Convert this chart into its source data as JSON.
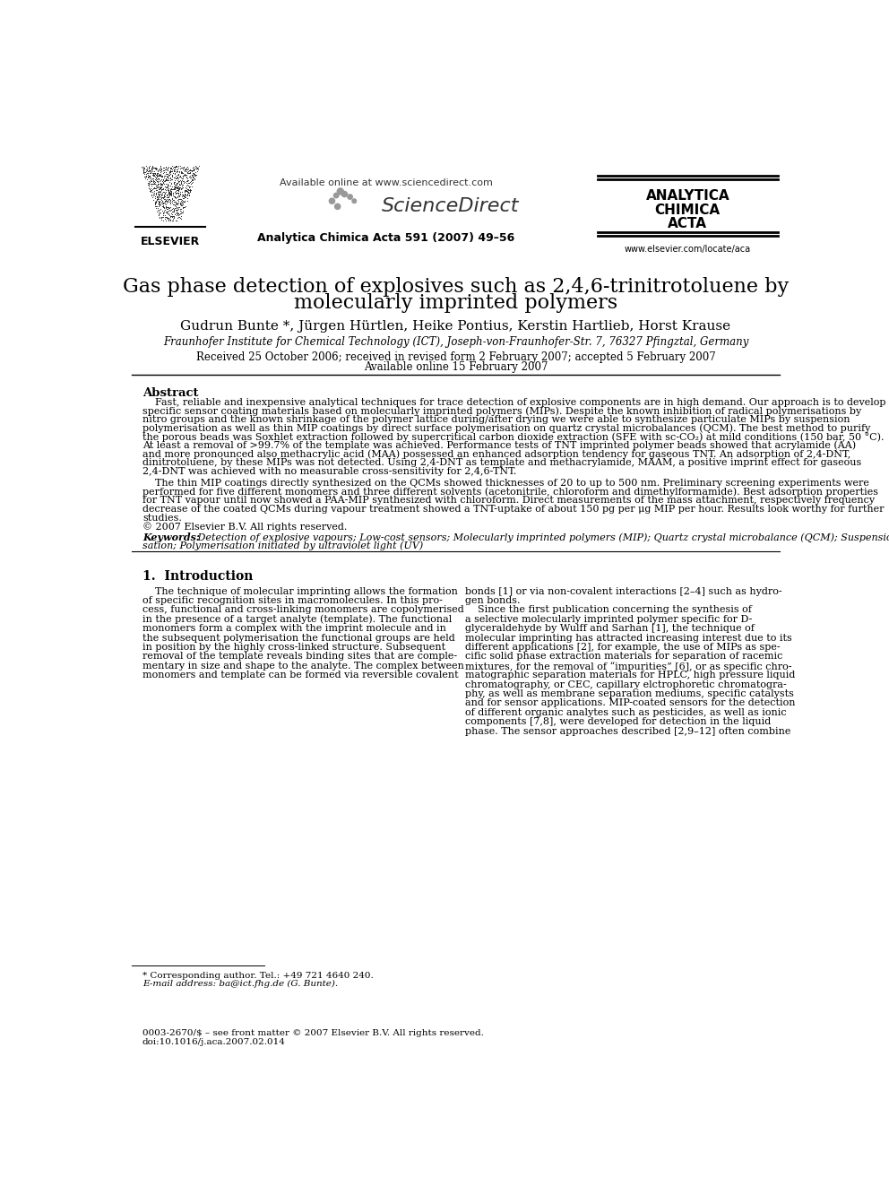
{
  "title_line1": "Gas phase detection of explosives such as 2,4,6-trinitrotoluene by",
  "title_line2": "molecularly imprinted polymers",
  "authors": "Gudrun Bunte *, Jürgen Hürtlen, Heike Pontius, Kerstin Hartlieb, Horst Krause",
  "affiliation": "Fraunhofer Institute for Chemical Technology (ICT), Joseph-von-Fraunhofer-Str. 7, 76327 Pfingztal, Germany",
  "received": "Received 25 October 2006; received in revised form 2 February 2007; accepted 5 February 2007",
  "available_online": "Available online 15 February 2007",
  "journal_header": "Available online at www.sciencedirect.com",
  "journal_name": "Analytica Chimica Acta 591 (2007) 49–56",
  "journal_box_line1": "ANALYTICA",
  "journal_box_line2": "CHIMICA",
  "journal_box_line3": "ACTA",
  "journal_url": "www.elsevier.com/locate/aca",
  "elsevier_text": "ELSEVIER",
  "abstract_title": "Abstract",
  "copyright": "© 2007 Elsevier B.V. All rights reserved.",
  "keywords_label": "Keywords: ",
  "keywords_text": " Detection of explosive vapours; Low-cost sensors; Molecularly imprinted polymers (MIP); Quartz crystal microbalance (QCM); Suspension polymeri-",
  "keywords_text2": "sation; Polymerisation initiated by ultraviolet light (UV)",
  "section1_title": "1.  Introduction",
  "footnote_star": "* Corresponding author. Tel.: +49 721 4640 240.",
  "footnote_email": "E-mail address: ba@ict.fhg.de (G. Bunte).",
  "footer_issn": "0003-2670/$ – see front matter © 2007 Elsevier B.V. All rights reserved.",
  "footer_doi": "doi:10.1016/j.aca.2007.02.014",
  "abstract_lines": [
    "    Fast, reliable and inexpensive analytical techniques for trace detection of explosive components are in high demand. Our approach is to develop",
    "specific sensor coating materials based on molecularly imprinted polymers (MIPs). Despite the known inhibition of radical polymerisations by",
    "nitro groups and the known shrinkage of the polymer lattice during/after drying we were able to synthesize particulate MIPs by suspension",
    "polymerisation as well as thin MIP coatings by direct surface polymerisation on quartz crystal microbalances (QCM). The best method to purify",
    "the porous beads was Soxhlet extraction followed by supercritical carbon dioxide extraction (SFE with sc-CO₂) at mild conditions (150 bar, 50 °C).",
    "At least a removal of >99.7% of the template was achieved. Performance tests of TNT imprinted polymer beads showed that acrylamide (AA)",
    "and more pronounced also methacrylic acid (MAA) possessed an enhanced adsorption tendency for gaseous TNT. An adsorption of 2,4-DNT,",
    "dinitrotoluene, by these MIPs was not detected. Using 2,4-DNT as template and methacrylamide, MAAM, a positive imprint effect for gaseous",
    "2,4-DNT was achieved with no measurable cross-sensitivity for 2,4,6-TNT.",
    "    The thin MIP coatings directly synthesized on the QCMs showed thicknesses of 20 to up to 500 nm. Preliminary screening experiments were",
    "performed for five different monomers and three different solvents (acetonitrile, chloroform and dimethylformamide). Best adsorption properties",
    "for TNT vapour until now showed a PAA-MIP synthesized with chloroform. Direct measurements of the mass attachment, respectively frequency",
    "decrease of the coated QCMs during vapour treatment showed a TNT-uptake of about 150 pg per μg MIP per hour. Results look worthy for further",
    "studies.",
    "© 2007 Elsevier B.V. All rights reserved."
  ],
  "intro_col1_lines": [
    "    The technique of molecular imprinting allows the formation",
    "of specific recognition sites in macromolecules. In this pro-",
    "cess, functional and cross-linking monomers are copolymerised",
    "in the presence of a target analyte (template). The functional",
    "monomers form a complex with the imprint molecule and in",
    "the subsequent polymerisation the functional groups are held",
    "in position by the highly cross-linked structure. Subsequent",
    "removal of the template reveals binding sites that are comple-",
    "mentary in size and shape to the analyte. The complex between",
    "monomers and template can be formed via reversible covalent"
  ],
  "intro_col2_lines": [
    "bonds [1] or via non-covalent interactions [2–4] such as hydro-",
    "gen bonds.",
    "    Since the first publication concerning the synthesis of",
    "a selective molecularly imprinted polymer specific for D-",
    "glyceraldehyde by Wulff and Sarhan [1], the technique of",
    "molecular imprinting has attracted increasing interest due to its",
    "different applications [2], for example, the use of MIPs as spe-",
    "cific solid phase extraction materials for separation of racemic",
    "mixtures, for the removal of “impurities” [6], or as specific chro-",
    "matographic separation materials for HPLC, high pressure liquid",
    "chromatography, or CEC, capillary elctrophoretic chromatogra-",
    "phy, as well as membrane separation mediums, specific catalysts",
    "and for sensor applications. MIP-coated sensors for the detection",
    "of different organic analytes such as pesticides, as well as ionic",
    "components [7,8], were developed for detection in the liquid",
    "phase. The sensor approaches described [2,9–12] often combine"
  ],
  "background_color": "#ffffff",
  "text_color": "#000000"
}
